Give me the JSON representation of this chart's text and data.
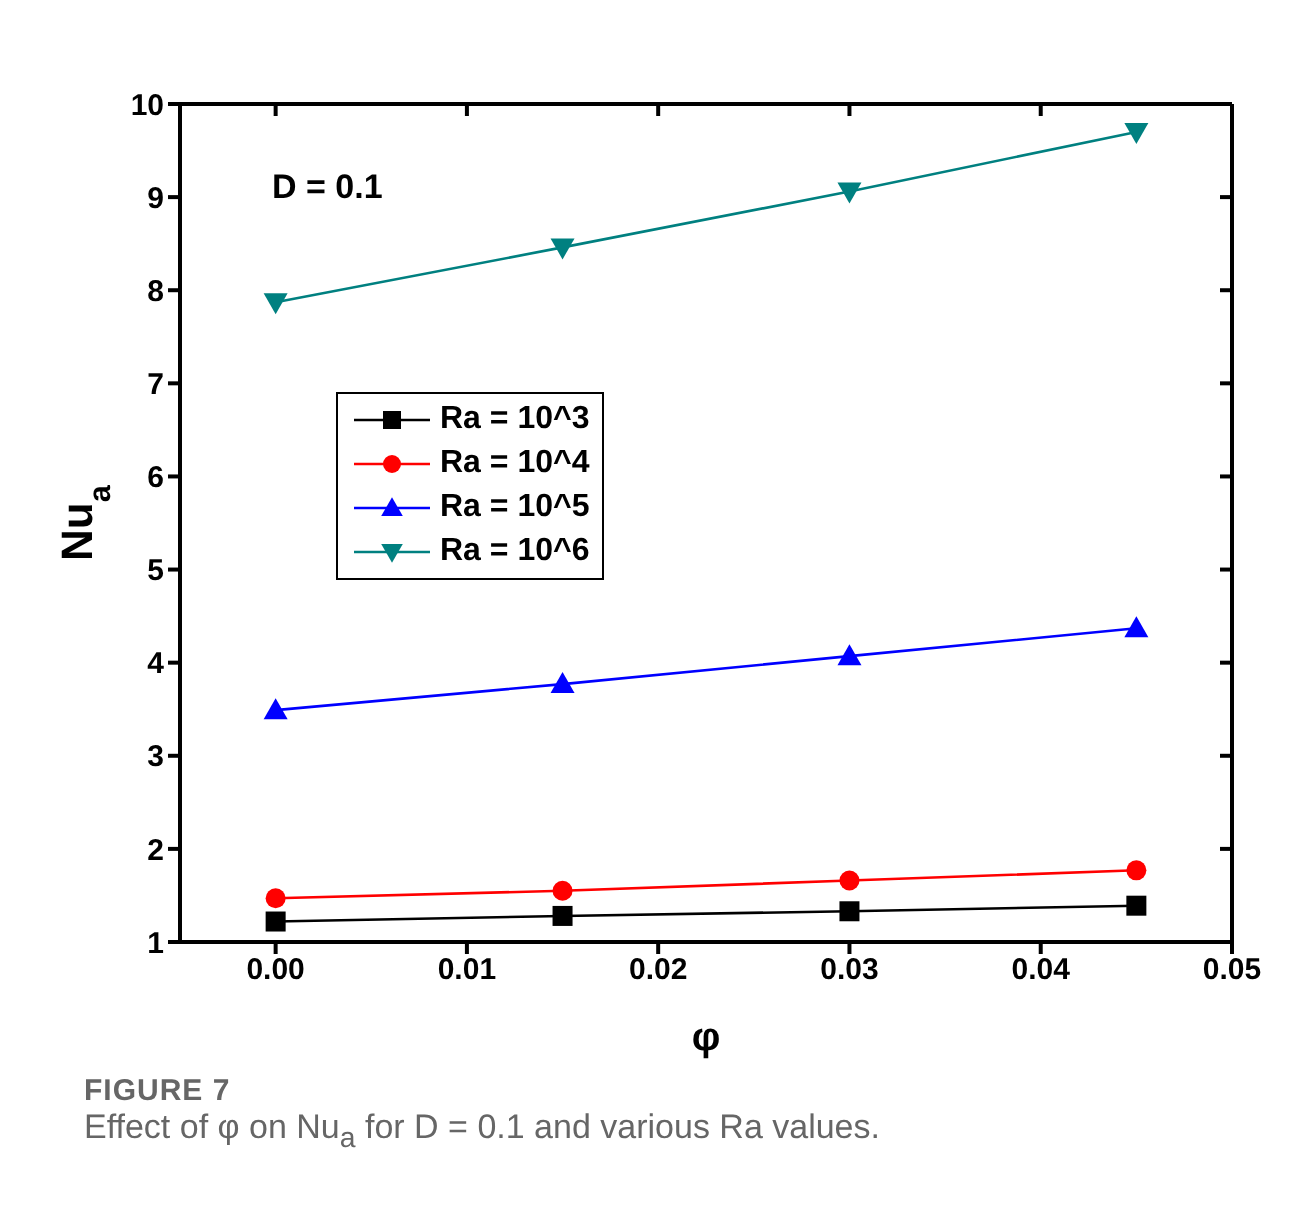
{
  "chart_data": {
    "type": "line",
    "xlabel": "φ",
    "ylabel": "Nu$_{a}$",
    "x": [
      0,
      0.015,
      0.03,
      0.045
    ],
    "series": [
      {
        "name": "Ra = 10^3",
        "color": "#000000",
        "marker": "square",
        "values": [
          1.22,
          1.28,
          1.33,
          1.39
        ]
      },
      {
        "name": "Ra = 10^4",
        "color": "#ff0000",
        "marker": "circle",
        "values": [
          1.47,
          1.55,
          1.66,
          1.77
        ]
      },
      {
        "name": "Ra = 10^5",
        "color": "#0000ff",
        "marker": "triangle",
        "values": [
          3.49,
          3.77,
          4.07,
          4.37
        ]
      },
      {
        "name": "Ra = 10^6",
        "color": "#008080",
        "marker": "triangle-down",
        "values": [
          7.87,
          8.46,
          9.06,
          9.7
        ]
      }
    ],
    "xlim": [
      -0.005,
      0.05
    ],
    "xticks": [
      {
        "value": 0,
        "label": "0.00"
      },
      {
        "value": 0.01,
        "label": "0.01"
      },
      {
        "value": 0.02,
        "label": "0.02"
      },
      {
        "value": 0.03,
        "label": "0.03"
      },
      {
        "value": 0.04,
        "label": "0.04"
      },
      {
        "value": 0.05,
        "label": "0.05"
      }
    ],
    "ylim": [
      1,
      10
    ],
    "yticks": [
      1,
      2,
      3,
      4,
      5,
      6,
      7,
      8,
      9,
      10
    ],
    "grid": false,
    "legend": "left",
    "line_style": "solid",
    "annotations": [
      {
        "text": "D = 0.1"
      },
      "FIGURE 7",
      "Effect of φ on Nu$_{a}$ for D = 0.1 and various Ra values."
    ]
  }
}
